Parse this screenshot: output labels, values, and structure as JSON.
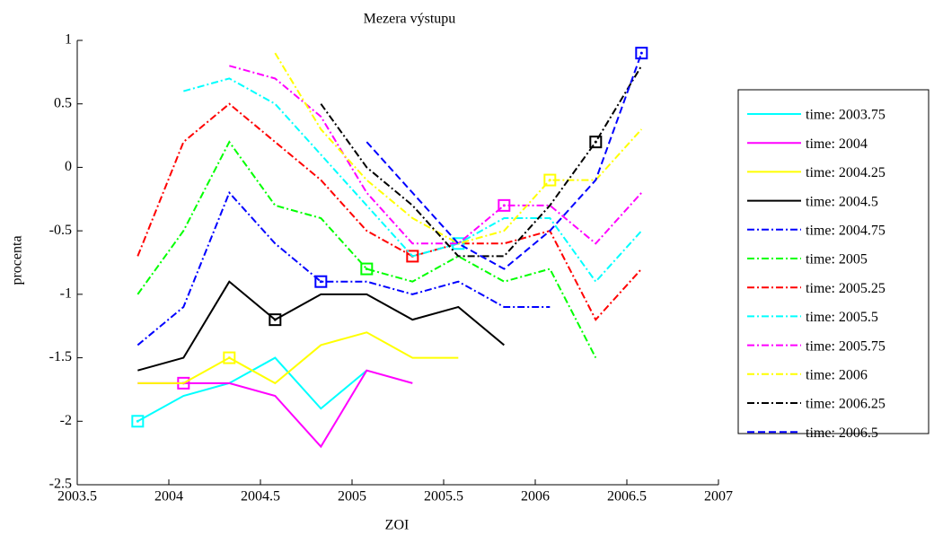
{
  "chart_data": {
    "type": "line",
    "title": "Mezera výstupu",
    "x_label": "ZOI",
    "y_label": "procenta",
    "x": [
      2003.83,
      2004.08,
      2004.33,
      2004.58,
      2004.83,
      2005.08,
      2005.33,
      2005.58,
      2005.83,
      2006.08,
      2006.33,
      2006.58
    ],
    "xlim": [
      2003.5,
      2007
    ],
    "xticks": [
      2003.5,
      2004,
      2004.5,
      2005,
      2005.5,
      2006,
      2006.5,
      2007
    ],
    "ylim": [
      -2.5,
      1
    ],
    "yticks": [
      -2.5,
      -2,
      -1.5,
      -1,
      -0.5,
      0,
      0.5,
      1
    ],
    "legend": "right",
    "series": [
      {
        "name": "time: 2003.75",
        "color": "#00ffff",
        "style": "solid",
        "marker_x": 2003.83,
        "values": [
          -2,
          -1.8,
          -1.7,
          -1.5,
          -1.9,
          -1.6,
          null,
          null,
          null,
          null,
          null,
          null
        ]
      },
      {
        "name": "time: 2004",
        "color": "#ff00ff",
        "style": "solid",
        "marker_x": 2004.08,
        "values": [
          -1.7,
          -1.7,
          -1.7,
          -1.8,
          -2.2,
          -1.6,
          -1.7,
          null,
          null,
          null,
          null,
          null
        ]
      },
      {
        "name": "time: 2004.25",
        "color": "#ffff00",
        "style": "solid",
        "marker_x": 2004.33,
        "values": [
          -1.7,
          -1.7,
          -1.5,
          -1.7,
          -1.4,
          -1.3,
          -1.5,
          -1.5,
          null,
          null,
          null,
          null
        ]
      },
      {
        "name": "time: 2004.5",
        "color": "#000000",
        "style": "solid",
        "marker_x": 2004.58,
        "values": [
          -1.6,
          -1.5,
          -0.9,
          -1.2,
          -1,
          -1,
          -1.2,
          -1.1,
          -1.4,
          null,
          null,
          null
        ]
      },
      {
        "name": "time: 2004.75",
        "color": "#0000ff",
        "style": "dashdot",
        "marker_x": 2004.83,
        "values": [
          -1.4,
          -1.1,
          -0.2,
          -0.6,
          -0.9,
          -0.9,
          -1,
          -0.9,
          -1.1,
          -1.1,
          null,
          null
        ]
      },
      {
        "name": "time: 2005",
        "color": "#00ff00",
        "style": "dashdot",
        "marker_x": 2005.08,
        "values": [
          -1,
          -0.5,
          0.2,
          -0.3,
          -0.4,
          -0.8,
          -0.9,
          -0.7,
          -0.9,
          -0.8,
          -1.5,
          null
        ]
      },
      {
        "name": "time: 2005.25",
        "color": "#ff0000",
        "style": "dashdot",
        "marker_x": 2005.33,
        "values": [
          -0.7,
          0.2,
          0.5,
          0.2,
          -0.1,
          -0.5,
          -0.7,
          -0.6,
          -0.6,
          -0.5,
          -1.2,
          -0.8
        ]
      },
      {
        "name": "time: 2005.5",
        "color": "#00ffff",
        "style": "dashdot",
        "marker_x": 2005.58,
        "values": [
          null,
          0.6,
          0.7,
          0.5,
          0.1,
          -0.3,
          -0.7,
          -0.6,
          -0.4,
          -0.4,
          -0.9,
          -0.5
        ]
      },
      {
        "name": "time: 2005.75",
        "color": "#ff00ff",
        "style": "dashdot",
        "marker_x": 2005.83,
        "values": [
          null,
          null,
          0.8,
          0.7,
          0.4,
          -0.2,
          -0.6,
          -0.6,
          -0.3,
          -0.3,
          -0.6,
          -0.2
        ]
      },
      {
        "name": "time: 2006",
        "color": "#ffff00",
        "style": "dashdot",
        "marker_x": 2006.08,
        "values": [
          null,
          null,
          null,
          0.9,
          0.3,
          -0.1,
          -0.4,
          -0.6,
          -0.5,
          -0.1,
          -0.1,
          0.3
        ]
      },
      {
        "name": "time: 2006.25",
        "color": "#000000",
        "style": "dashdot",
        "marker_x": 2006.33,
        "values": [
          null,
          null,
          null,
          null,
          0.5,
          0,
          -0.3,
          -0.7,
          -0.7,
          -0.3,
          0.2,
          0.8
        ]
      },
      {
        "name": "time: 2006.5",
        "color": "#0000ff",
        "style": "dashed",
        "marker_x": 2006.58,
        "values": [
          null,
          null,
          null,
          null,
          null,
          0.2,
          -0.2,
          -0.6,
          -0.8,
          -0.5,
          -0.1,
          0.9
        ]
      }
    ]
  }
}
